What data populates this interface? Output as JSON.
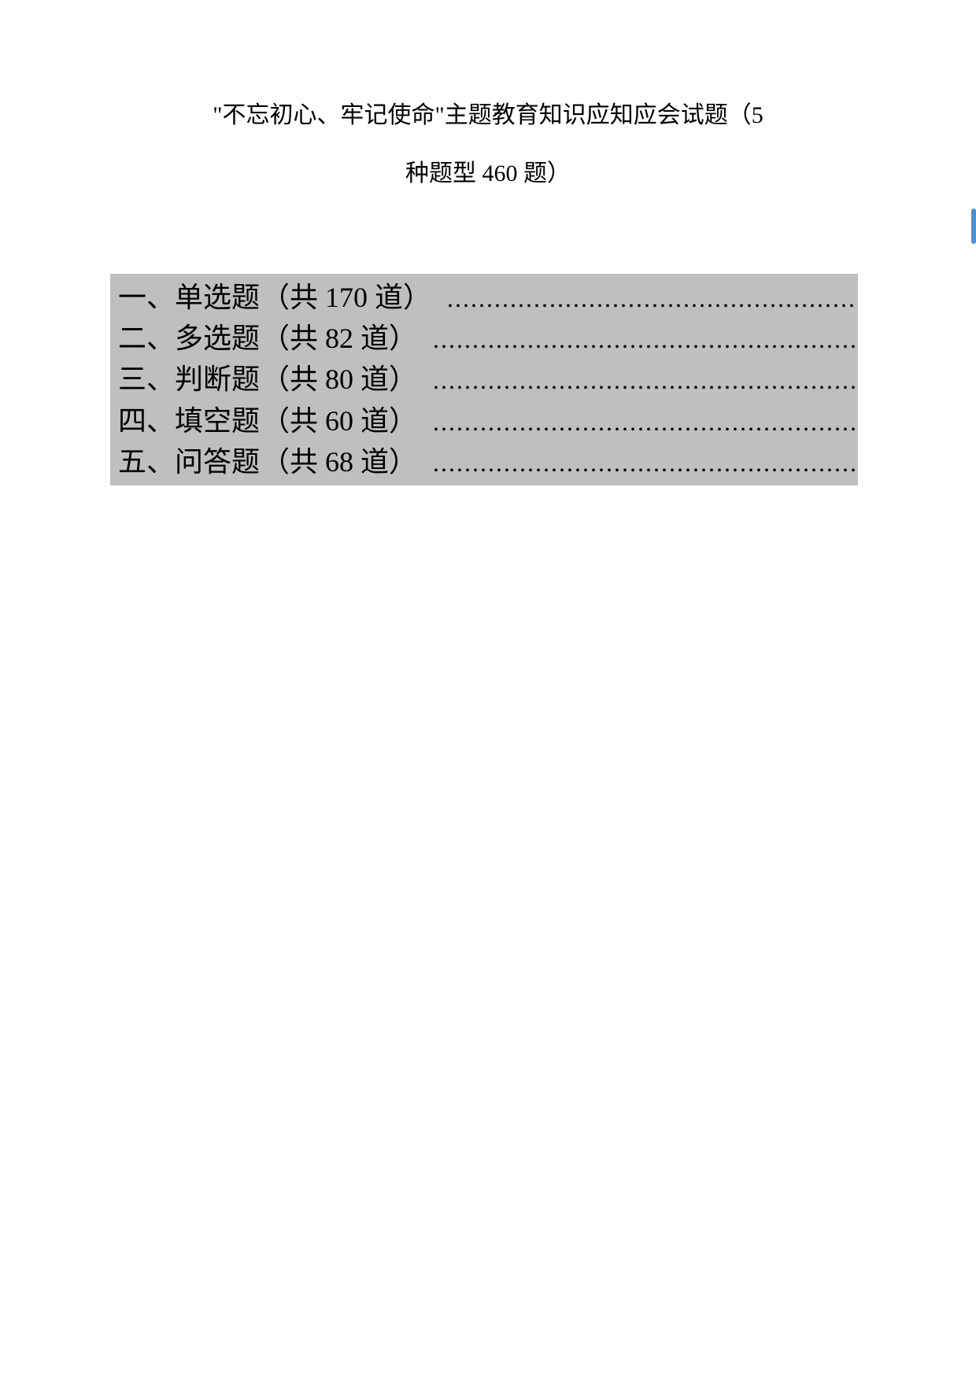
{
  "title": {
    "line1": "\"不忘初心、牢记使命\"主题教育知识应知应会试题（5",
    "line2": "种题型 460 题）"
  },
  "toc": {
    "background_color": "#bfbfbf",
    "text_color": "#000000",
    "fontsize": 36,
    "items": [
      {
        "label": "一、单选题",
        "count": "（共 170 道）"
      },
      {
        "label": "二、多选题",
        "count": "（共 82 道）"
      },
      {
        "label": "三、判断题",
        "count": "（共 80 道）"
      },
      {
        "label": "四、填空题",
        "count": "（共 60 道）"
      },
      {
        "label": "五、问答题",
        "count": "（共 68 道）"
      }
    ]
  },
  "dots": "...................................................................",
  "colors": {
    "page_background": "#ffffff",
    "marker": "#4a90d9"
  }
}
